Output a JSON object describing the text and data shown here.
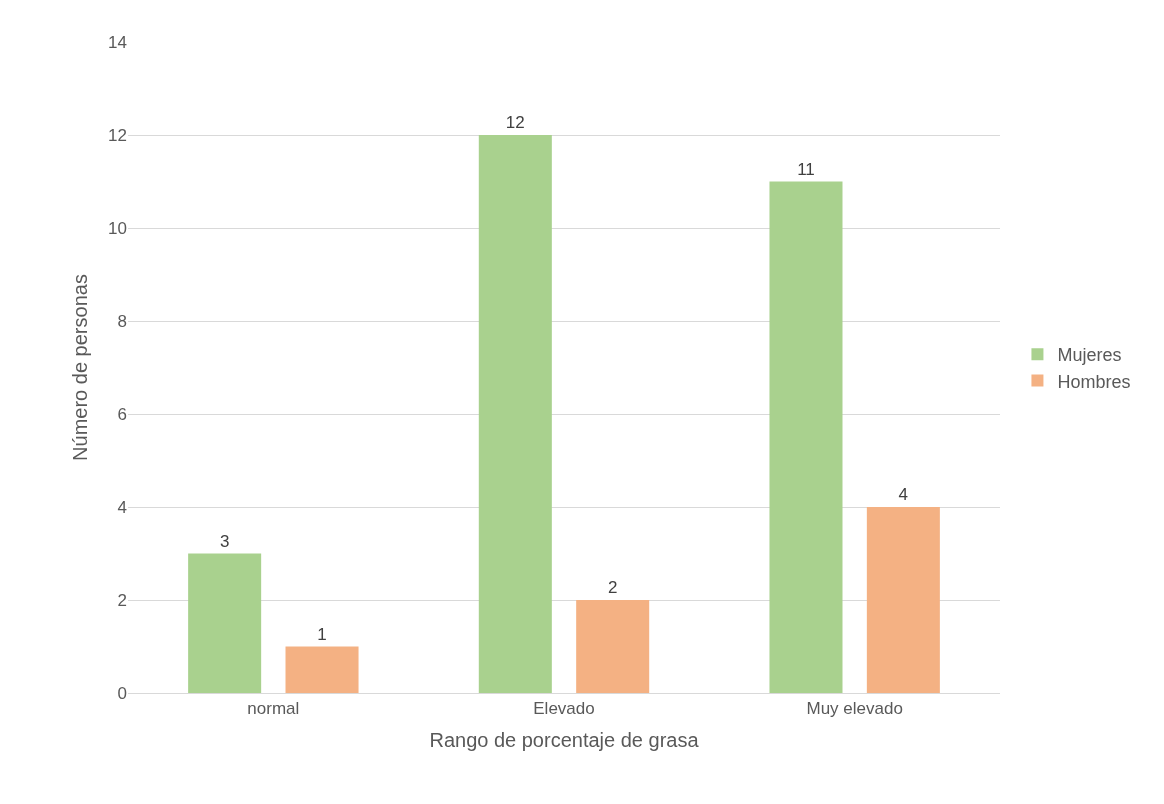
{
  "chart_data": {
    "type": "bar",
    "xlabel": "Rango de porcentaje de grasa",
    "ylabel": "Número de personas",
    "categories": [
      "normal",
      "Elevado",
      "Muy elevado"
    ],
    "series": [
      {
        "name": "Mujeres",
        "color": "#a9d18e",
        "values": [
          3,
          12,
          11
        ]
      },
      {
        "name": "Hombres",
        "color": "#f4b183",
        "values": [
          1,
          2,
          4
        ]
      }
    ],
    "ylim": [
      0,
      14
    ],
    "yticks": [
      0,
      2,
      4,
      6,
      8,
      10,
      12,
      14
    ],
    "grid": "y",
    "legend": "right",
    "data_labels": true
  }
}
